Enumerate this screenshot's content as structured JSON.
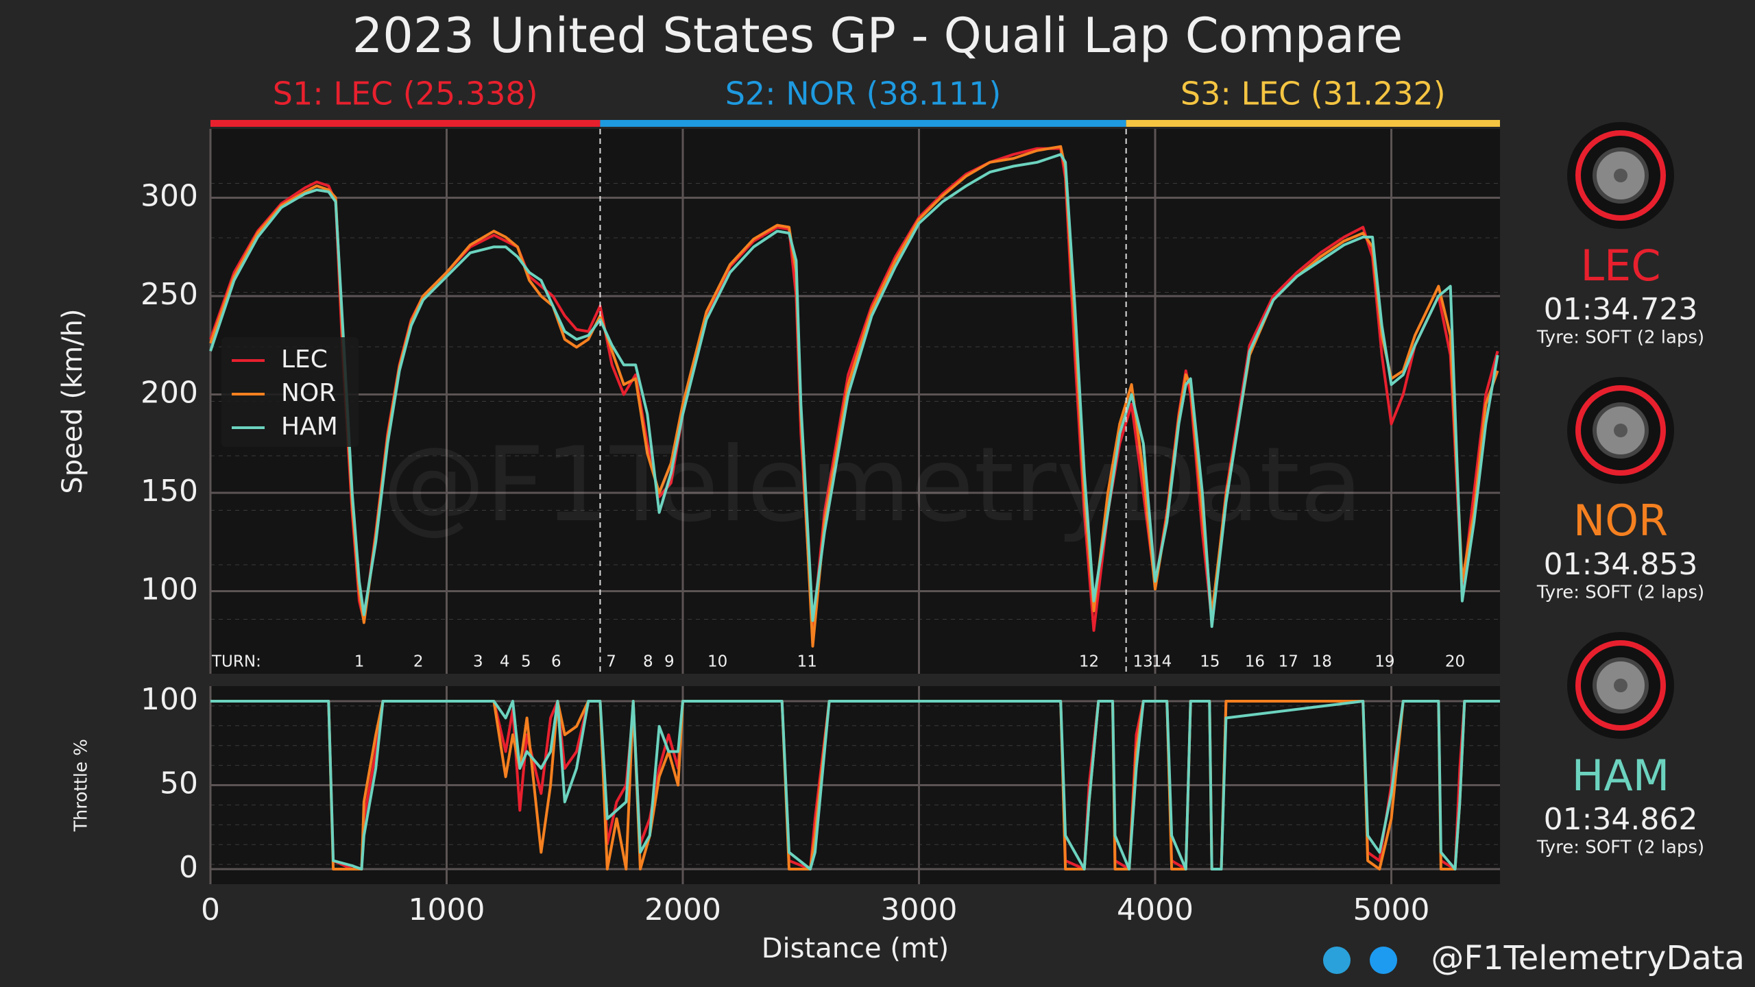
{
  "title": "2023 United States GP - Quali Lap Compare",
  "sectors": [
    {
      "label": "S1: LEC (25.338)",
      "color": "#e8202e",
      "start": 0,
      "end": 1650
    },
    {
      "label": "S2: NOR (38.111)",
      "color": "#1e9ae0",
      "start": 1650,
      "end": 3877
    },
    {
      "label": "S3: LEC (31.232)",
      "color": "#f5c542",
      "start": 3877,
      "end": 5460
    }
  ],
  "turns_label": "TURN:",
  "turns": [
    {
      "label": "1",
      "distance": 630
    },
    {
      "label": "2",
      "distance": 880
    },
    {
      "label": "3",
      "distance": 1133
    },
    {
      "label": "4",
      "distance": 1246
    },
    {
      "label": "5",
      "distance": 1336
    },
    {
      "label": "6",
      "distance": 1464
    },
    {
      "label": "7",
      "distance": 1697
    },
    {
      "label": "8",
      "distance": 1853
    },
    {
      "label": "9",
      "distance": 1943
    },
    {
      "label": "10",
      "distance": 2147
    },
    {
      "label": "11",
      "distance": 2526
    },
    {
      "label": "12",
      "distance": 3720
    },
    {
      "label": "13",
      "distance": 3948
    },
    {
      "label": "14",
      "distance": 4028
    },
    {
      "label": "15",
      "distance": 4232
    },
    {
      "label": "16",
      "distance": 4422
    },
    {
      "label": "17",
      "distance": 4564
    },
    {
      "label": "18",
      "distance": 4706
    },
    {
      "label": "19",
      "distance": 4972
    },
    {
      "label": "20",
      "distance": 5270
    }
  ],
  "chart_data": [
    {
      "type": "line",
      "ylabel": "Speed (km/h)",
      "xlim": [
        0,
        5460
      ],
      "ylim": [
        58,
        335
      ],
      "xticks": [
        0,
        1000,
        2000,
        3000,
        4000,
        5000
      ],
      "yticks": [
        100,
        150,
        200,
        250,
        300
      ],
      "grid": true,
      "x": [
        0,
        100,
        200,
        300,
        400,
        450,
        500,
        530,
        560,
        600,
        630,
        650,
        700,
        750,
        800,
        850,
        900,
        1000,
        1100,
        1200,
        1250,
        1300,
        1350,
        1400,
        1450,
        1500,
        1550,
        1600,
        1650,
        1700,
        1750,
        1800,
        1850,
        1900,
        1950,
        2000,
        2100,
        2200,
        2300,
        2400,
        2450,
        2480,
        2500,
        2550,
        2600,
        2700,
        2800,
        2900,
        3000,
        3100,
        3200,
        3300,
        3400,
        3500,
        3600,
        3620,
        3660,
        3700,
        3740,
        3800,
        3850,
        3900,
        3950,
        4000,
        4050,
        4100,
        4130,
        4150,
        4200,
        4240,
        4300,
        4400,
        4500,
        4600,
        4700,
        4800,
        4880,
        4920,
        4960,
        5000,
        5050,
        5100,
        5200,
        5250,
        5300,
        5350,
        5400,
        5450
      ],
      "series": [
        {
          "name": "LEC",
          "color": "#e8202e",
          "values": [
            228,
            262,
            283,
            297,
            305,
            308,
            306,
            298,
            220,
            140,
            95,
            85,
            130,
            180,
            215,
            238,
            250,
            262,
            275,
            281,
            278,
            275,
            260,
            255,
            250,
            240,
            233,
            232,
            245,
            215,
            200,
            210,
            175,
            148,
            155,
            190,
            240,
            265,
            278,
            285,
            284,
            250,
            180,
            80,
            140,
            210,
            245,
            270,
            290,
            302,
            312,
            318,
            322,
            325,
            325,
            310,
            220,
            140,
            80,
            140,
            175,
            195,
            150,
            103,
            140,
            190,
            212,
            200,
            130,
            85,
            150,
            225,
            250,
            262,
            272,
            280,
            285,
            270,
            220,
            185,
            200,
            225,
            250,
            220,
            100,
            150,
            200,
            222
          ]
        },
        {
          "name": "NOR",
          "color": "#f58020",
          "values": [
            226,
            260,
            282,
            296,
            303,
            306,
            304,
            300,
            230,
            145,
            100,
            84,
            128,
            178,
            214,
            237,
            250,
            262,
            276,
            283,
            280,
            275,
            258,
            250,
            245,
            228,
            224,
            228,
            240,
            222,
            205,
            208,
            170,
            150,
            165,
            195,
            242,
            266,
            279,
            286,
            285,
            262,
            190,
            72,
            135,
            205,
            243,
            268,
            289,
            301,
            311,
            318,
            320,
            324,
            326,
            315,
            235,
            150,
            90,
            150,
            185,
            205,
            160,
            101,
            138,
            188,
            210,
            205,
            140,
            88,
            148,
            220,
            248,
            260,
            270,
            278,
            282,
            275,
            230,
            208,
            212,
            230,
            255,
            230,
            105,
            140,
            195,
            212
          ]
        },
        {
          "name": "HAM",
          "color": "#6cd3bf",
          "values": [
            222,
            258,
            280,
            295,
            302,
            304,
            303,
            298,
            235,
            150,
            105,
            88,
            125,
            175,
            212,
            235,
            248,
            260,
            272,
            275,
            275,
            270,
            262,
            258,
            245,
            232,
            228,
            230,
            238,
            225,
            215,
            215,
            190,
            140,
            160,
            190,
            238,
            262,
            275,
            283,
            282,
            268,
            195,
            85,
            130,
            200,
            240,
            265,
            287,
            298,
            306,
            313,
            316,
            318,
            322,
            318,
            245,
            160,
            95,
            140,
            180,
            200,
            175,
            105,
            135,
            185,
            205,
            208,
            150,
            82,
            145,
            222,
            248,
            260,
            268,
            276,
            280,
            280,
            235,
            205,
            210,
            225,
            250,
            255,
            95,
            135,
            185,
            220
          ]
        }
      ]
    },
    {
      "type": "line",
      "ylabel": "Throttle %",
      "xlabel": "Distance (mt)",
      "xlim": [
        0,
        5460
      ],
      "ylim": [
        -9,
        109
      ],
      "xticks": [
        0,
        1000,
        2000,
        3000,
        4000,
        5000
      ],
      "yticks": [
        0,
        50,
        100
      ],
      "grid": true,
      "x": [
        0,
        500,
        520,
        600,
        640,
        650,
        700,
        730,
        1200,
        1250,
        1280,
        1310,
        1340,
        1400,
        1440,
        1470,
        1500,
        1550,
        1600,
        1650,
        1680,
        1720,
        1760,
        1790,
        1820,
        1860,
        1900,
        1940,
        1980,
        2000,
        2420,
        2450,
        2540,
        2560,
        2620,
        3600,
        3620,
        3700,
        3720,
        3760,
        3820,
        3830,
        3890,
        3920,
        3950,
        4050,
        4070,
        4130,
        4150,
        4230,
        4240,
        4280,
        4300,
        4880,
        4900,
        4950,
        5000,
        5050,
        5200,
        5210,
        5270,
        5290,
        5310,
        5460
      ],
      "series": [
        {
          "name": "LEC",
          "color": "#e8202e",
          "values": [
            100,
            100,
            5,
            0,
            0,
            30,
            70,
            100,
            100,
            70,
            95,
            35,
            80,
            45,
            90,
            100,
            60,
            70,
            100,
            100,
            15,
            40,
            50,
            95,
            15,
            30,
            60,
            80,
            60,
            100,
            100,
            5,
            0,
            30,
            100,
            100,
            5,
            0,
            50,
            100,
            100,
            5,
            0,
            80,
            100,
            100,
            5,
            0,
            100,
            100,
            0,
            0,
            100,
            100,
            10,
            5,
            50,
            100,
            100,
            5,
            0,
            60,
            100,
            100
          ]
        },
        {
          "name": "NOR",
          "color": "#f58020",
          "values": [
            100,
            100,
            0,
            0,
            0,
            40,
            80,
            100,
            100,
            55,
            80,
            60,
            90,
            10,
            50,
            100,
            80,
            85,
            100,
            100,
            0,
            30,
            0,
            100,
            0,
            20,
            55,
            70,
            50,
            100,
            100,
            0,
            0,
            20,
            100,
            100,
            0,
            0,
            40,
            100,
            100,
            0,
            0,
            70,
            100,
            100,
            0,
            0,
            100,
            100,
            0,
            0,
            100,
            100,
            5,
            0,
            30,
            100,
            100,
            0,
            0,
            40,
            100,
            100
          ]
        },
        {
          "name": "HAM",
          "color": "#6cd3bf",
          "values": [
            100,
            100,
            5,
            2,
            0,
            20,
            60,
            100,
            100,
            90,
            100,
            60,
            70,
            60,
            70,
            100,
            40,
            60,
            100,
            100,
            30,
            35,
            40,
            100,
            10,
            20,
            85,
            70,
            70,
            100,
            100,
            10,
            0,
            10,
            100,
            100,
            20,
            0,
            40,
            100,
            100,
            20,
            0,
            60,
            100,
            100,
            20,
            0,
            100,
            100,
            0,
            0,
            90,
            100,
            20,
            10,
            45,
            100,
            100,
            10,
            0,
            40,
            100,
            100
          ]
        }
      ]
    }
  ],
  "drivers": [
    {
      "name": "LEC",
      "color": "#e8202e",
      "time": "01:34.723",
      "tyre": "Tyre: SOFT (2 laps)"
    },
    {
      "name": "NOR",
      "color": "#f58020",
      "time": "01:34.853",
      "tyre": "Tyre: SOFT (2 laps)"
    },
    {
      "name": "HAM",
      "color": "#6cd3bf",
      "time": "01:34.862",
      "tyre": "Tyre: SOFT (2 laps)"
    }
  ],
  "watermark": "@F1TelemetryData",
  "handle": "@F1TelemetryData"
}
